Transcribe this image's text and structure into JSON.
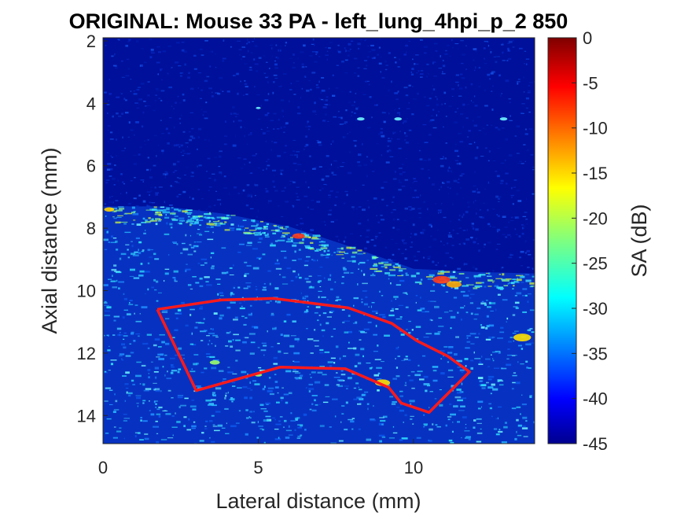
{
  "chart_data": {
    "type": "heatmap",
    "title": "ORIGINAL: Mouse 33 PA -   left_lung_4hpi_p_2 850",
    "xlabel": "Lateral distance (mm)",
    "ylabel": "Axial distance (mm)",
    "xlim": [
      0,
      13.9
    ],
    "ylim": [
      1.9,
      14.9
    ],
    "y_reversed": true,
    "x_ticks": [
      0,
      5,
      10
    ],
    "x_tick_labels": [
      "0",
      "5",
      "10"
    ],
    "y_ticks": [
      2,
      4,
      6,
      8,
      10,
      12,
      14
    ],
    "y_tick_labels": [
      "2",
      "4",
      "6",
      "8",
      "10",
      "12",
      "14"
    ],
    "colormap": "jet",
    "colorbar": {
      "label": "SA (dB)",
      "range": [
        -45,
        0
      ],
      "ticks": [
        0,
        -5,
        -10,
        -15,
        -20,
        -25,
        -30,
        -35,
        -40,
        -45
      ],
      "tick_labels": [
        "0",
        "-5",
        "-10",
        "-15",
        "-20",
        "-25",
        "-30",
        "-35",
        "-40",
        "-45"
      ]
    },
    "roi": {
      "color": "#ff1a1a",
      "x": [
        1.75,
        3.8,
        5.5,
        7.9,
        9.3,
        10.1,
        11.1,
        11.8,
        10.5,
        9.6,
        9.2,
        7.8,
        5.7,
        3.0,
        1.75
      ],
      "y": [
        10.6,
        10.3,
        10.25,
        10.55,
        11.05,
        11.6,
        12.1,
        12.6,
        13.9,
        13.6,
        13.1,
        12.5,
        12.45,
        13.2,
        10.6
      ]
    },
    "tissue_boundary": {
      "x": [
        0,
        2,
        4,
        6,
        8,
        10,
        12,
        13.9
      ],
      "y": [
        7.3,
        7.3,
        7.55,
        7.95,
        8.6,
        9.3,
        9.4,
        9.45
      ]
    }
  }
}
